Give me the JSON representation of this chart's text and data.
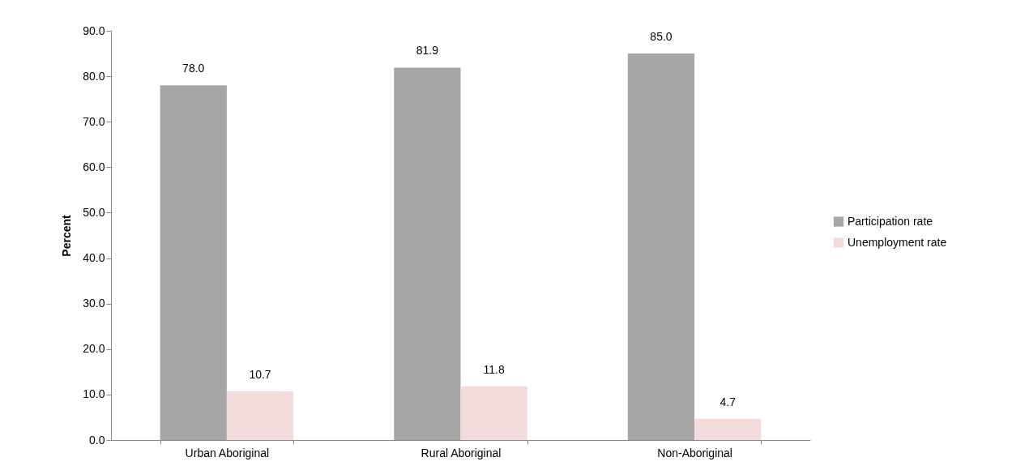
{
  "chart_data": {
    "type": "bar",
    "ylabel": "Percent",
    "categories": [
      "Urban Aboriginal",
      "Rural Aboriginal",
      "Non-Aboriginal"
    ],
    "ylim": [
      0,
      90
    ],
    "yticks": [
      {
        "value": 0,
        "label": "0.0"
      },
      {
        "value": 10,
        "label": "10.0"
      },
      {
        "value": 20,
        "label": "20.0"
      },
      {
        "value": 30,
        "label": "30.0"
      },
      {
        "value": 40,
        "label": "40.0"
      },
      {
        "value": 50,
        "label": "50.0"
      },
      {
        "value": 60,
        "label": "60.0"
      },
      {
        "value": 70,
        "label": "70.0"
      },
      {
        "value": 80,
        "label": "80.0"
      },
      {
        "value": 90,
        "label": "90.0"
      }
    ],
    "grid": false,
    "legend": "right",
    "series": [
      {
        "name": "Participation rate",
        "color": "#a6a6a6",
        "values": [
          78.0,
          81.9,
          85.0
        ],
        "value_labels": [
          "78.0",
          "81.9",
          "85.0"
        ]
      },
      {
        "name": "Unemployment rate",
        "color": "#f2dcdb",
        "values": [
          10.7,
          11.8,
          4.7
        ],
        "value_labels": [
          "10.7",
          "11.8",
          "4.7"
        ]
      }
    ]
  }
}
